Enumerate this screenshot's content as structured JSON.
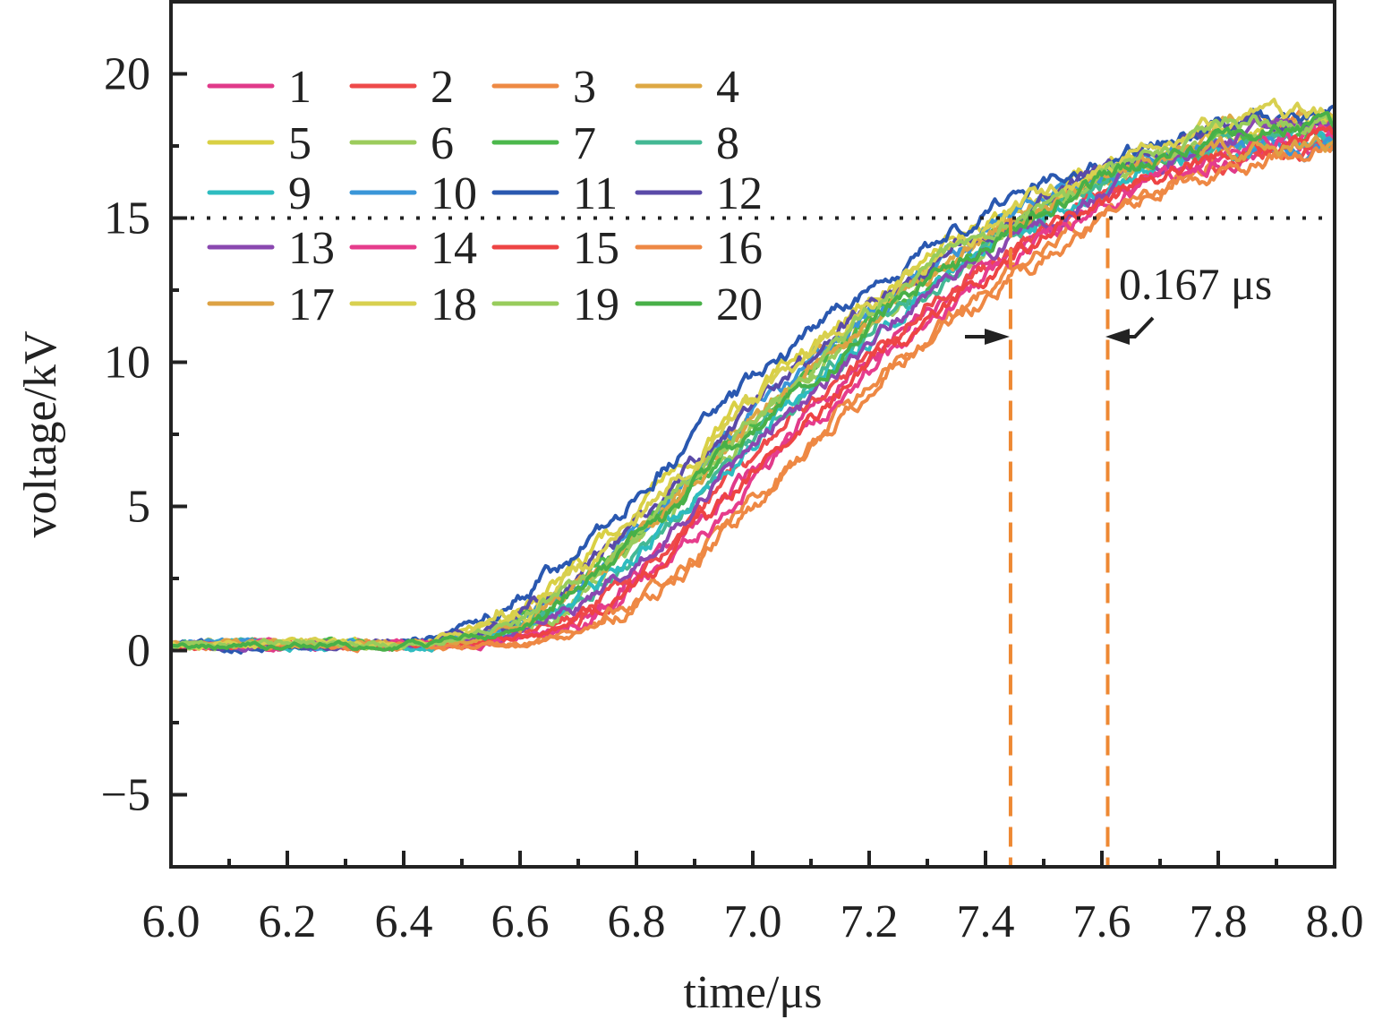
{
  "chart_data": {
    "type": "line",
    "title": "",
    "xlabel": "time/μs",
    "ylabel": "voltage/kV",
    "xlim": [
      6.0,
      8.0
    ],
    "ylim": [
      -7.5,
      22.5
    ],
    "xticks": [
      "6.0",
      "6.2",
      "6.4",
      "6.6",
      "6.8",
      "7.0",
      "7.2",
      "7.4",
      "7.6",
      "7.8",
      "8.0"
    ],
    "xtick_values": [
      6.0,
      6.2,
      6.4,
      6.6,
      6.8,
      7.0,
      7.2,
      7.4,
      7.6,
      7.8,
      8.0
    ],
    "yticks": [
      "−5",
      "0",
      "5",
      "10",
      "15",
      "20"
    ],
    "ytick_values": [
      -5,
      0,
      5,
      10,
      15,
      20
    ],
    "grid": false,
    "legend_placement": "top-left",
    "legend_columns": 4,
    "reference_line": {
      "y": 15,
      "style": "dotted"
    },
    "markers": [
      {
        "x": 7.443,
        "style": "dashed",
        "color": "#EE8833"
      },
      {
        "x": 7.61,
        "style": "dashed",
        "color": "#EE8833"
      }
    ],
    "annotation": {
      "text": "0.167 μs",
      "value": 0.167
    },
    "series_shape": {
      "baseline": 0.2,
      "plateau": 18.0,
      "description_x": [
        6.0,
        6.4,
        6.5,
        6.6,
        6.7,
        6.8,
        6.9,
        7.0,
        7.1,
        7.2,
        7.3,
        7.4,
        7.5,
        7.6,
        7.7,
        7.8,
        7.9,
        8.0
      ],
      "reference_y": [
        0.2,
        0.2,
        0.5,
        1.2,
        2.6,
        4.4,
        6.4,
        8.4,
        10.2,
        11.9,
        13.3,
        14.6,
        15.7,
        16.6,
        17.3,
        17.8,
        18.0,
        18.0
      ]
    },
    "series": [
      {
        "name": "1",
        "color": "#E03A8A",
        "shift": 0.11
      },
      {
        "name": "2",
        "color": "#EE4A4A",
        "shift": 0.09
      },
      {
        "name": "3",
        "color": "#EE8A44",
        "shift": 0.16
      },
      {
        "name": "4",
        "color": "#DDA844",
        "shift": 0.02
      },
      {
        "name": "5",
        "color": "#D9D044",
        "shift": -0.02
      },
      {
        "name": "6",
        "color": "#9CCC5C",
        "shift": 0.04
      },
      {
        "name": "7",
        "color": "#4CB84C",
        "shift": 0.03
      },
      {
        "name": "8",
        "color": "#44B894",
        "shift": 0.05
      },
      {
        "name": "9",
        "color": "#2EBCC0",
        "shift": 0.06
      },
      {
        "name": "10",
        "color": "#3A96D8",
        "shift": 0.01
      },
      {
        "name": "11",
        "color": "#2A58B0",
        "shift": -0.05
      },
      {
        "name": "12",
        "color": "#5A4AA8",
        "shift": 0.0
      },
      {
        "name": "13",
        "color": "#8A48B0",
        "shift": 0.07
      },
      {
        "name": "14",
        "color": "#E63C8C",
        "shift": 0.13
      },
      {
        "name": "15",
        "color": "#EE4444",
        "shift": 0.12
      },
      {
        "name": "16",
        "color": "#EE8844",
        "shift": 0.17
      },
      {
        "name": "17",
        "color": "#DDA244",
        "shift": 0.03
      },
      {
        "name": "18",
        "color": "#D8D050",
        "shift": -0.01
      },
      {
        "name": "19",
        "color": "#98CC5C",
        "shift": 0.02
      },
      {
        "name": "20",
        "color": "#48B048",
        "shift": 0.04
      }
    ]
  }
}
